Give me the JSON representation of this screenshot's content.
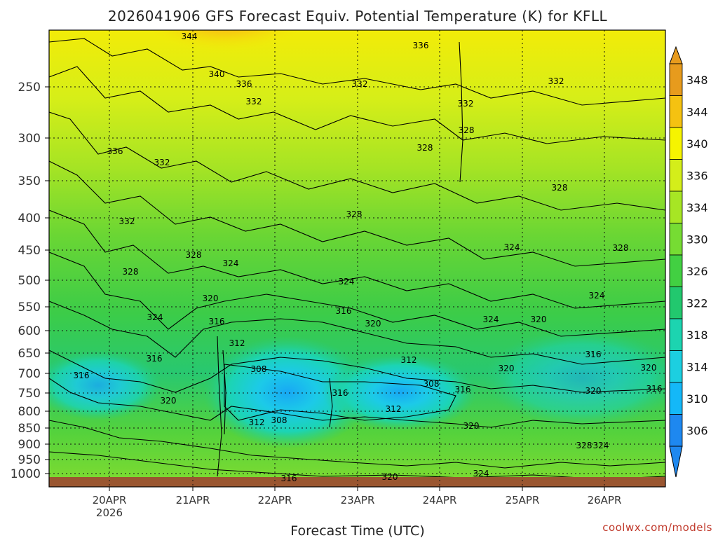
{
  "chart_data": {
    "type": "heatmap",
    "title": "2026041906 GFS Forecast Equiv. Potential Temperature (K) for KFLL",
    "xlabel": "Forecast Time (UTC)",
    "ylabel": "",
    "y_ticks": [
      "250",
      "300",
      "350",
      "400",
      "450",
      "500",
      "550",
      "600",
      "650",
      "700",
      "750",
      "800",
      "850",
      "900",
      "950",
      "1000"
    ],
    "x_ticks": [
      {
        "label": "20APR",
        "sublabel": "2026"
      },
      {
        "label": "21APR",
        "sublabel": ""
      },
      {
        "label": "22APR",
        "sublabel": ""
      },
      {
        "label": "23APR",
        "sublabel": ""
      },
      {
        "label": "24APR",
        "sublabel": ""
      },
      {
        "label": "25APR",
        "sublabel": ""
      },
      {
        "label": "26APR",
        "sublabel": ""
      }
    ],
    "colorbar": {
      "levels": [
        "348",
        "344",
        "340",
        "336",
        "334",
        "330",
        "326",
        "322",
        "318",
        "314",
        "310",
        "306"
      ],
      "colors": [
        "#e79b1d",
        "#f5c211",
        "#f6f400",
        "#d4ee1a",
        "#a7e624",
        "#76dc33",
        "#42d042",
        "#22c86e",
        "#1cd4b0",
        "#1ccfe0",
        "#14b8f8",
        "#1e88f0"
      ]
    },
    "contour_labels": [
      "344",
      "340",
      "336",
      "336",
      "336",
      "332",
      "332",
      "332",
      "332",
      "332",
      "332",
      "328",
      "328",
      "328",
      "328",
      "328",
      "328",
      "328",
      "324",
      "324",
      "324",
      "324",
      "324",
      "324",
      "324",
      "320",
      "320",
      "320",
      "320",
      "320",
      "320",
      "320",
      "320",
      "316",
      "316",
      "316",
      "316",
      "316",
      "316",
      "316",
      "316",
      "312",
      "312",
      "312",
      "312",
      "308",
      "308",
      "308",
      "328",
      "324",
      "316",
      "320"
    ],
    "credit": "coolwx.com/models"
  }
}
